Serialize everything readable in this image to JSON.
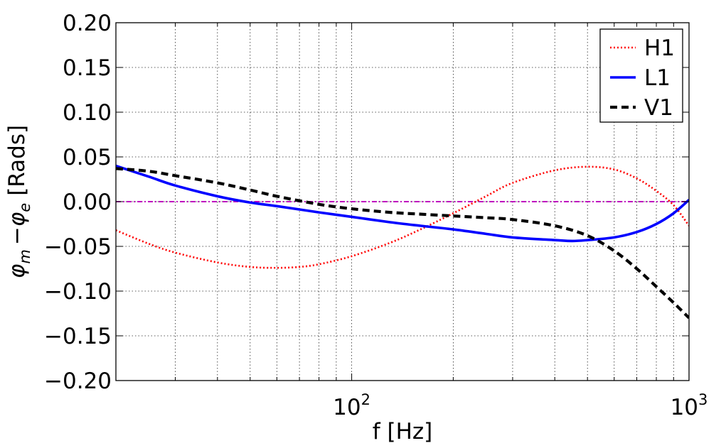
{
  "chart_data": {
    "type": "line",
    "xscale": "log",
    "xlim": [
      20,
      1000
    ],
    "ylim": [
      -0.2,
      0.2
    ],
    "grid": true,
    "legend_position": "top-right",
    "xlabel": "f [Hz]",
    "ylabel_main": "[Rads]",
    "ylabel_symbol_a": "φ",
    "ylabel_sub_a": "m",
    "ylabel_minus": "−",
    "ylabel_symbol_b": "φ",
    "ylabel_sub_b": "e",
    "x_ticks": [
      {
        "value": 100,
        "base": "10",
        "exp": "2"
      },
      {
        "value": 1000,
        "base": "10",
        "exp": "3"
      }
    ],
    "y_ticks": [
      {
        "value": 0.2,
        "label": "0.20"
      },
      {
        "value": 0.15,
        "label": "0.15"
      },
      {
        "value": 0.1,
        "label": "0.10"
      },
      {
        "value": 0.05,
        "label": "0.05"
      },
      {
        "value": 0.0,
        "label": "0.00"
      },
      {
        "value": -0.05,
        "label": "−0.05"
      },
      {
        "value": -0.1,
        "label": "−0.10"
      },
      {
        "value": -0.15,
        "label": "−0.15"
      },
      {
        "value": -0.2,
        "label": "−0.20"
      }
    ],
    "reference_line": {
      "y": 0.0,
      "color": "#bf00bf",
      "style": "dashdot"
    },
    "series": [
      {
        "name": "H1",
        "color": "#ff0000",
        "style": "dotted",
        "x": [
          20,
          25,
          30,
          40,
          50,
          60,
          70,
          80,
          100,
          130,
          160,
          200,
          250,
          300,
          400,
          500,
          600,
          700,
          800,
          900,
          1000
        ],
        "y": [
          -0.032,
          -0.047,
          -0.057,
          -0.068,
          -0.073,
          -0.074,
          -0.073,
          -0.07,
          -0.061,
          -0.046,
          -0.031,
          -0.013,
          0.006,
          0.021,
          0.035,
          0.039,
          0.036,
          0.026,
          0.012,
          -0.004,
          -0.027
        ]
      },
      {
        "name": "L1",
        "color": "#0000ff",
        "style": "solid",
        "x": [
          20,
          25,
          30,
          40,
          50,
          60,
          80,
          100,
          130,
          160,
          200,
          250,
          300,
          400,
          450,
          500,
          600,
          700,
          800,
          900,
          1000
        ],
        "y": [
          0.04,
          0.028,
          0.018,
          0.006,
          -0.001,
          -0.005,
          -0.012,
          -0.017,
          -0.023,
          -0.027,
          -0.031,
          -0.036,
          -0.04,
          -0.043,
          -0.044,
          -0.043,
          -0.04,
          -0.034,
          -0.025,
          -0.013,
          0.002
        ]
      },
      {
        "name": "V1",
        "color": "#000000",
        "style": "dashed",
        "x": [
          20,
          25,
          30,
          40,
          50,
          60,
          80,
          100,
          130,
          160,
          200,
          250,
          300,
          400,
          500,
          600,
          700,
          800,
          900,
          1000
        ],
        "y": [
          0.037,
          0.034,
          0.029,
          0.021,
          0.013,
          0.006,
          -0.003,
          -0.008,
          -0.012,
          -0.014,
          -0.016,
          -0.018,
          -0.02,
          -0.027,
          -0.038,
          -0.055,
          -0.075,
          -0.095,
          -0.113,
          -0.13
        ]
      }
    ]
  }
}
